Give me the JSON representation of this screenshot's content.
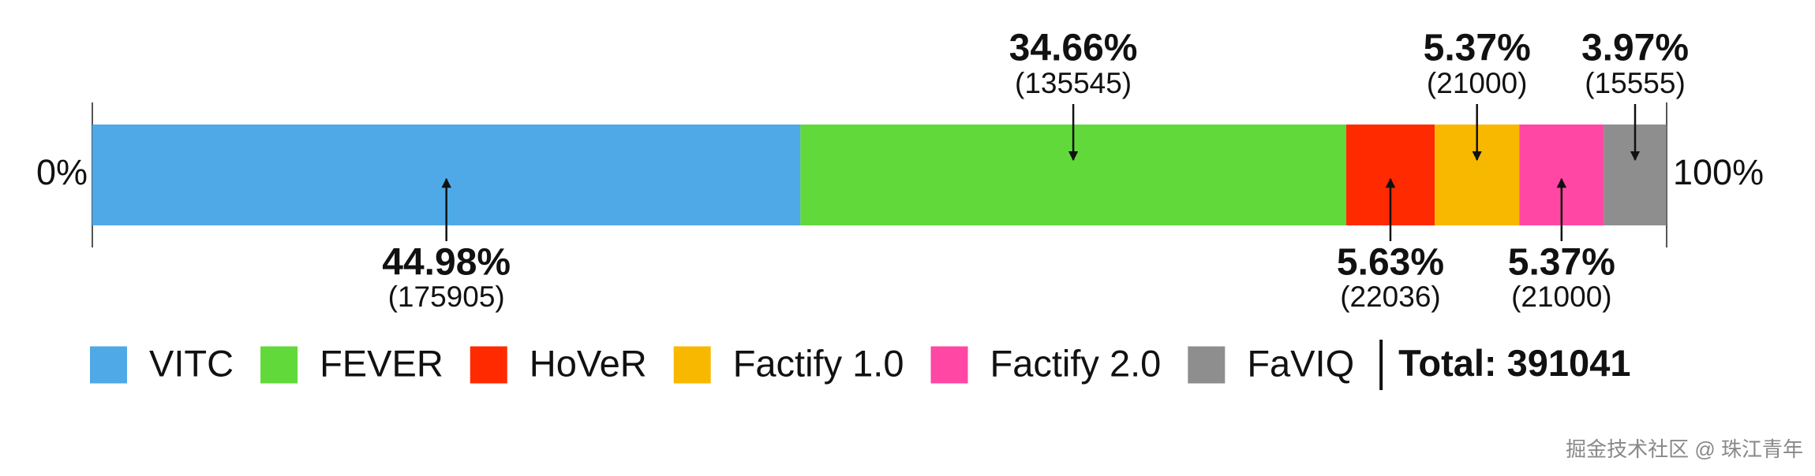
{
  "chart_data": {
    "type": "stacked-bar",
    "categories": [
      "VITC",
      "FEVER",
      "HoVeR",
      "Factify 1.0",
      "Factify 2.0",
      "FaVIQ"
    ],
    "colors": [
      "#4ea9e6",
      "#62d93a",
      "#ff2a00",
      "#f9b800",
      "#ff47a3",
      "#8e8e8e"
    ],
    "values": [
      44.98,
      34.66,
      5.63,
      5.37,
      5.37,
      3.97
    ],
    "value_labels": [
      "44.98%",
      "34.66%",
      "5.63%",
      "5.37%",
      "5.37%",
      "3.97%"
    ],
    "counts": [
      175905,
      135545,
      22036,
      21000,
      21000,
      15555
    ],
    "count_labels": [
      "(175905)",
      "(135545)",
      "(22036)",
      "(21000)",
      "(21000)",
      "(15555)"
    ],
    "xlim": [
      0,
      100
    ],
    "xticks": [
      {
        "value": 0,
        "label": "0%"
      },
      {
        "value": 100,
        "label": "100%"
      }
    ],
    "total_label": "Total:",
    "total": 391041
  },
  "watermark": "掘金技术社区 @ 珠江青年"
}
